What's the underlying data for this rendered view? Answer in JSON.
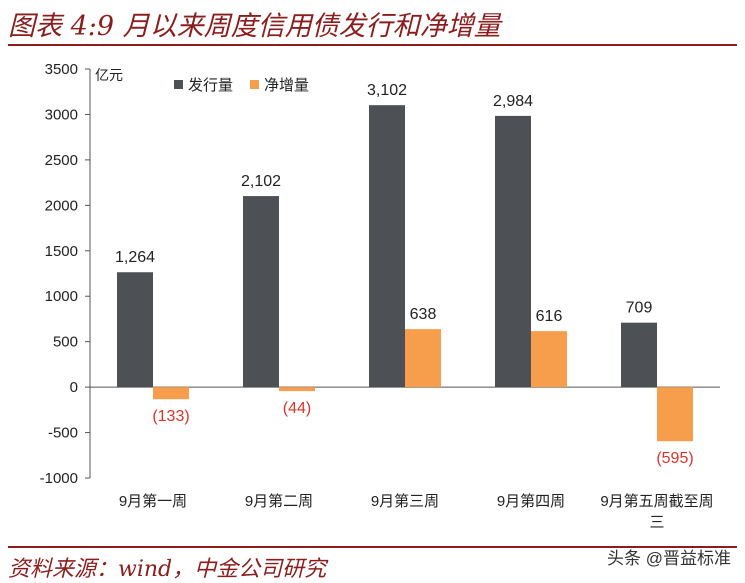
{
  "title": "图表 4:9 月以来周度信用债发行和净增量",
  "source": "资料来源：wind，中金公司研究",
  "watermark": "头条 @晋益标准",
  "colors": {
    "title": "#8a1e1e",
    "issuance": "#4d5155",
    "net": "#f79e4d",
    "negative_label": "#d9342b"
  },
  "chart_data": {
    "type": "bar",
    "unit": "亿元",
    "categories": [
      "9月第一周",
      "9月第二周",
      "9月第三周",
      "9月第四周",
      "9月第五周截至周三"
    ],
    "series": [
      {
        "name": "发行量",
        "values": [
          1264,
          2102,
          3102,
          2984,
          709
        ],
        "labels": [
          "1,264",
          "2,102",
          "3,102",
          "2,984",
          "709"
        ]
      },
      {
        "name": "净增量",
        "values": [
          -133,
          -44,
          638,
          616,
          -595
        ],
        "labels": [
          "(133)",
          "(44)",
          "638",
          "616",
          "(595)"
        ]
      }
    ],
    "ylim": [
      -1000,
      3500
    ],
    "yticks": [
      -1000,
      -500,
      0,
      500,
      1000,
      1500,
      2000,
      2500,
      3000,
      3500
    ],
    "legend_position": "top-left",
    "grid": false
  }
}
